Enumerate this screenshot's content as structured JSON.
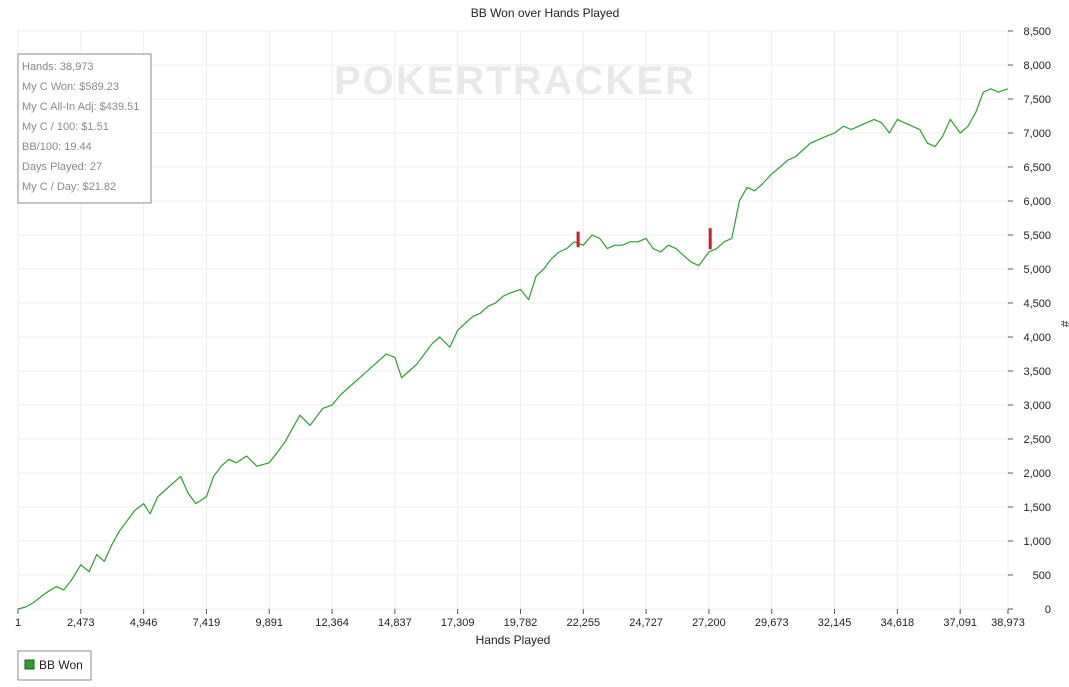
{
  "chart_data": {
    "type": "line",
    "title": "BB Won over Hands Played",
    "xlabel": "Hands Played",
    "ylabel": "#",
    "xlim": [
      1,
      38973
    ],
    "ylim": [
      0,
      8500
    ],
    "x_ticks": [
      1,
      2473,
      4946,
      7419,
      9891,
      12364,
      14837,
      17309,
      19782,
      22255,
      24727,
      27200,
      29673,
      32145,
      34618,
      37091,
      38973
    ],
    "x_tick_labels": [
      "1",
      "2,473",
      "4,946",
      "7,419",
      "9,891",
      "12,364",
      "14,837",
      "17,309",
      "19,782",
      "22,255",
      "24,727",
      "27,200",
      "29,673",
      "32,145",
      "34,618",
      "37,091",
      "38,973"
    ],
    "y_ticks": [
      0,
      500,
      1000,
      1500,
      2000,
      2500,
      3000,
      3500,
      4000,
      4500,
      5000,
      5500,
      6000,
      6500,
      7000,
      7500,
      8000,
      8500
    ],
    "y_tick_labels": [
      "0",
      "500",
      "1,000",
      "1,500",
      "2,000",
      "2,500",
      "3,000",
      "3,500",
      "4,000",
      "4,500",
      "5,000",
      "5,500",
      "6,000",
      "6,500",
      "7,000",
      "7,500",
      "8,000",
      "8,500"
    ],
    "grid": true,
    "series": [
      {
        "name": "BB Won",
        "color": "#2e9e2e",
        "x": [
          1,
          300,
          600,
          900,
          1200,
          1500,
          1800,
          2100,
          2473,
          2800,
          3100,
          3400,
          3700,
          4000,
          4300,
          4600,
          4946,
          5200,
          5500,
          5800,
          6100,
          6400,
          6700,
          7000,
          7419,
          7700,
          8000,
          8300,
          8600,
          9000,
          9400,
          9891,
          10200,
          10500,
          10800,
          11100,
          11500,
          12000,
          12364,
          12700,
          13000,
          13300,
          13600,
          13900,
          14200,
          14500,
          14837,
          15100,
          15400,
          15700,
          16000,
          16300,
          16600,
          17000,
          17309,
          17600,
          17900,
          18200,
          18500,
          18800,
          19100,
          19400,
          19782,
          20100,
          20400,
          20700,
          21000,
          21300,
          21600,
          21900,
          22255,
          22600,
          22900,
          23200,
          23500,
          23800,
          24100,
          24400,
          24727,
          25000,
          25300,
          25600,
          25900,
          26200,
          26500,
          26800,
          27200,
          27500,
          27800,
          28100,
          28400,
          28700,
          29000,
          29300,
          29673,
          30000,
          30300,
          30600,
          30900,
          31200,
          31500,
          31800,
          32145,
          32500,
          32800,
          33100,
          33400,
          33700,
          34000,
          34300,
          34618,
          34900,
          35200,
          35500,
          35800,
          36100,
          36400,
          36700,
          37091,
          37400,
          37700,
          38000,
          38300,
          38600,
          38973
        ],
        "values": [
          0,
          30,
          90,
          180,
          260,
          330,
          280,
          420,
          650,
          550,
          800,
          700,
          950,
          1150,
          1300,
          1450,
          1550,
          1400,
          1650,
          1750,
          1850,
          1950,
          1700,
          1550,
          1650,
          1950,
          2100,
          2200,
          2150,
          2250,
          2100,
          2150,
          2300,
          2450,
          2650,
          2850,
          2700,
          2950,
          3000,
          3150,
          3250,
          3350,
          3450,
          3550,
          3650,
          3750,
          3700,
          3400,
          3500,
          3600,
          3750,
          3900,
          4000,
          3850,
          4100,
          4200,
          4300,
          4350,
          4450,
          4500,
          4600,
          4650,
          4700,
          4550,
          4900,
          5000,
          5150,
          5250,
          5300,
          5400,
          5350,
          5500,
          5450,
          5300,
          5350,
          5350,
          5400,
          5400,
          5450,
          5300,
          5250,
          5350,
          5300,
          5200,
          5100,
          5050,
          5250,
          5300,
          5400,
          5450,
          6000,
          6200,
          6150,
          6250,
          6400,
          6500,
          6600,
          6650,
          6750,
          6850,
          6900,
          6950,
          7000,
          7100,
          7050,
          7100,
          7150,
          7200,
          7150,
          7000,
          7200,
          7150,
          7100,
          7050,
          6850,
          6800,
          6950,
          7200,
          7000,
          7100,
          7300,
          7600,
          7650,
          7600,
          7650
        ]
      }
    ],
    "markers": [
      {
        "x": 22050,
        "y_low": 5320,
        "y_high": 5550,
        "color": "#d11a2a"
      },
      {
        "x": 27250,
        "y_low": 5290,
        "y_high": 5600,
        "color": "#d11a2a"
      }
    ],
    "legend": {
      "position": "bottom-left",
      "entries": [
        "BB Won"
      ]
    }
  },
  "stats": [
    "Hands: 38,973",
    "My C Won: $589.23",
    "My C All-In Adj: $439.51",
    "My C / 100: $1.51",
    "BB/100: 19.44",
    "Days Played: 27",
    "My C / Day: $21.82"
  ],
  "watermark": "POKERTRACKER"
}
